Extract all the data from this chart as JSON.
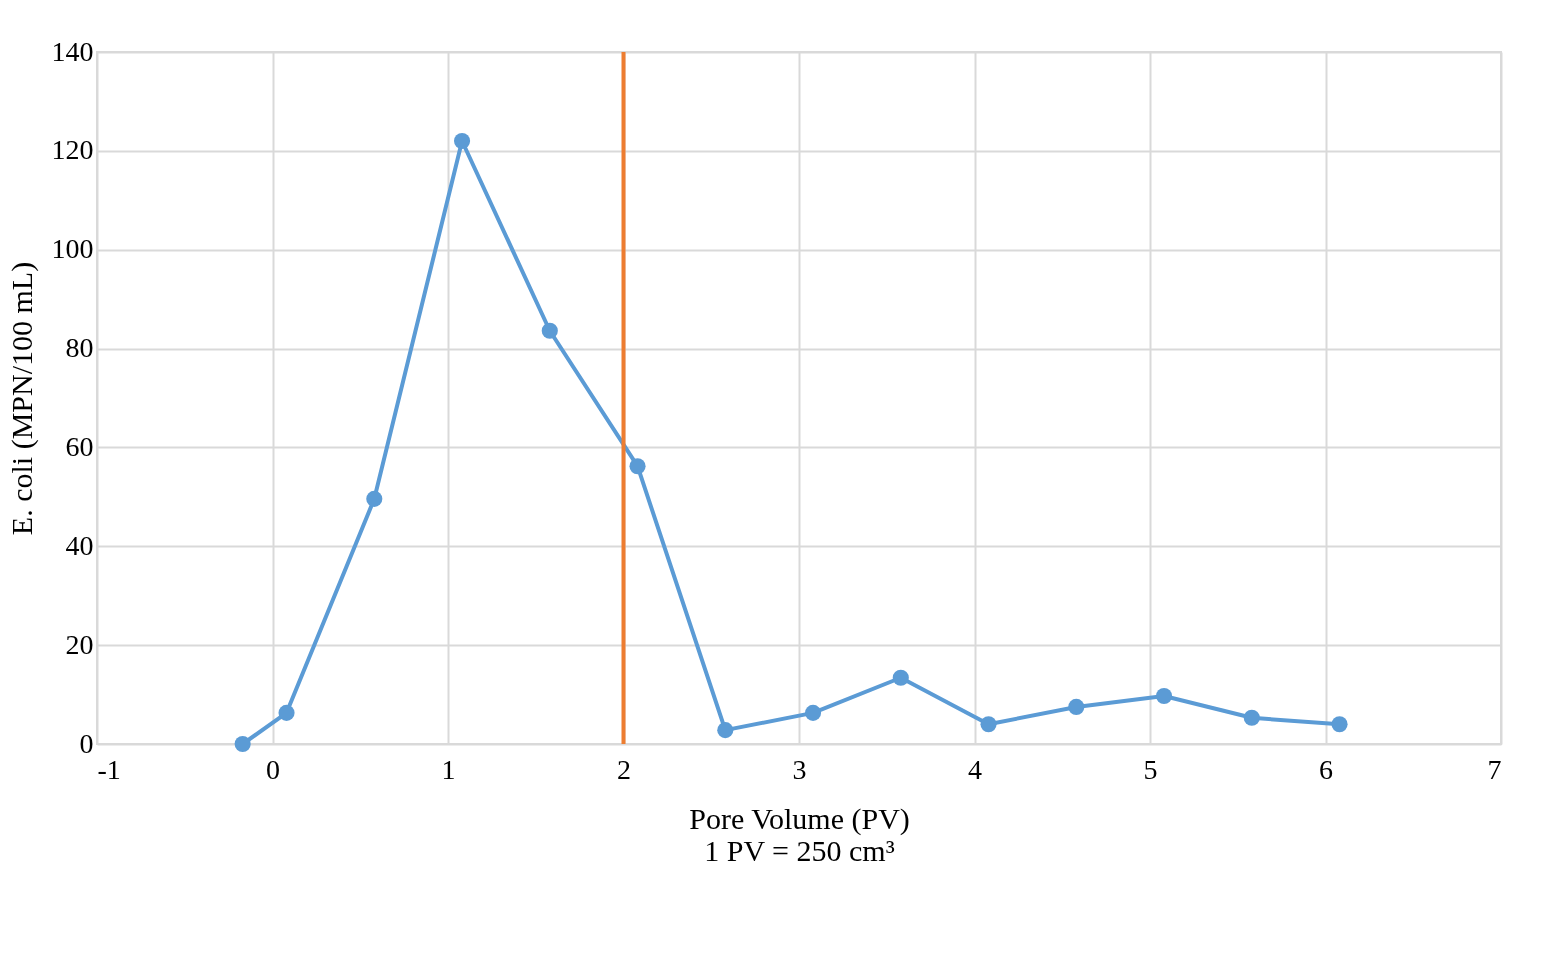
{
  "chart_data": {
    "type": "line",
    "xlabel": "Pore Volume (PV)\n1 PV = 250 cm³",
    "ylabel": "E. coli (MPN/100 mL)",
    "x": [
      -0.17,
      0.08,
      0.58,
      1.08,
      1.58,
      2.08,
      2.58,
      3.08,
      3.58,
      4.08,
      4.58,
      5.08,
      5.58,
      6.08
    ],
    "series": [
      {
        "color": "#5b9bd5",
        "values": [
          0,
          6.3,
          49.6,
          122,
          83.6,
          56.2,
          2.8,
          6.3,
          13.4,
          4.0,
          7.5,
          9.7,
          5.3,
          4.0
        ]
      }
    ],
    "ref_lines": [
      {
        "axis": "x",
        "value": 2,
        "color": "#ed7d31"
      }
    ],
    "xlim": [
      -1,
      7
    ],
    "xticks": [
      -1,
      0,
      1,
      2,
      3,
      4,
      5,
      6,
      7
    ],
    "ylim": [
      0,
      140
    ],
    "yticks": [
      0,
      20,
      40,
      60,
      80,
      100,
      120,
      140
    ],
    "grid": true,
    "marker": "circle",
    "line_style": "solid"
  }
}
